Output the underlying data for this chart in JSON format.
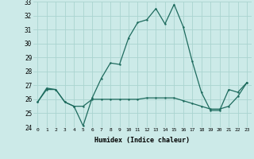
{
  "xlabel": "Humidex (Indice chaleur)",
  "x": [
    0,
    1,
    2,
    3,
    4,
    5,
    6,
    7,
    8,
    9,
    10,
    11,
    12,
    13,
    14,
    15,
    16,
    17,
    18,
    19,
    20,
    21,
    22,
    23
  ],
  "line1": [
    25.8,
    26.8,
    26.7,
    25.8,
    25.5,
    24.1,
    26.1,
    27.5,
    28.6,
    28.5,
    30.4,
    31.5,
    31.7,
    32.5,
    31.4,
    32.8,
    31.2,
    28.7,
    26.5,
    25.2,
    25.2,
    26.7,
    26.5,
    27.2
  ],
  "line2": [
    25.8,
    26.7,
    26.7,
    25.8,
    25.5,
    25.5,
    26.0,
    26.0,
    26.0,
    26.0,
    26.0,
    26.0,
    26.1,
    26.1,
    26.1,
    26.1,
    25.9,
    25.7,
    25.5,
    25.3,
    25.3,
    25.5,
    26.2,
    27.2
  ],
  "line_color": "#1e6b5e",
  "bg_color": "#cceae8",
  "grid_color": "#aad4d0",
  "ylim": [
    24,
    33
  ],
  "yticks": [
    24,
    25,
    26,
    27,
    28,
    29,
    30,
    31,
    32,
    33
  ],
  "xticks": [
    0,
    1,
    2,
    3,
    4,
    5,
    6,
    7,
    8,
    9,
    10,
    11,
    12,
    13,
    14,
    15,
    16,
    17,
    18,
    19,
    20,
    21,
    22,
    23
  ]
}
